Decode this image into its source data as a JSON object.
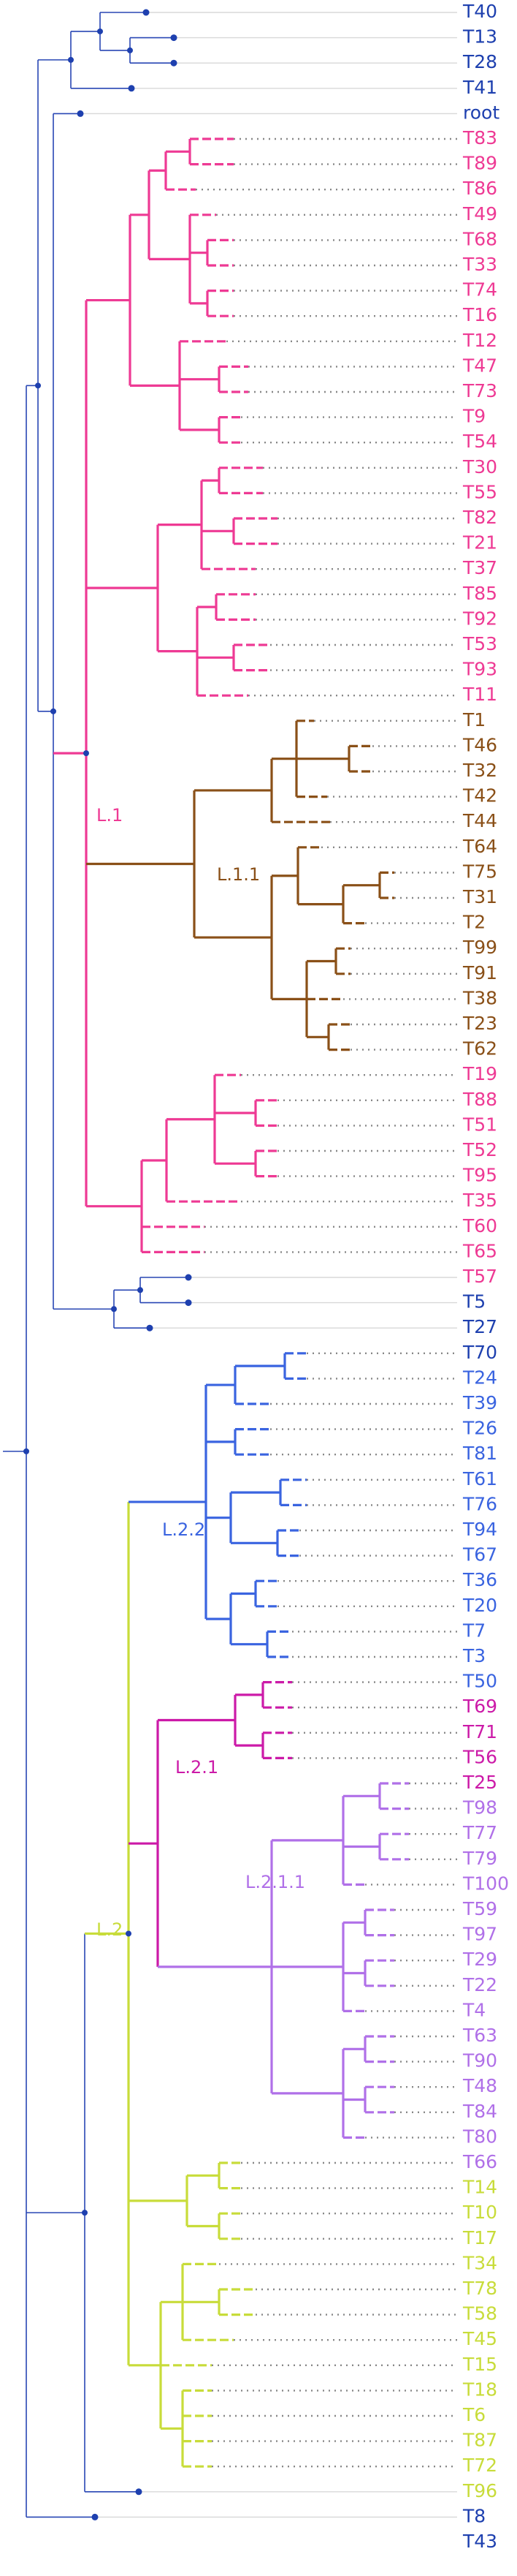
{
  "colors": {
    "base": "#2846b4",
    "node": "#1e40af",
    "guide": "#d8d8d8",
    "L.1": "#ee3a94",
    "L.1.1": "#8a5018",
    "L.2": "#c8dc3a",
    "L.2.1": "#cc1aa8",
    "L.2.1.1": "#b070e8",
    "L.2.2": "#3a64e0"
  },
  "clade_labels": [
    {
      "text": "L.1",
      "clade": "L.1"
    },
    {
      "text": "L.1.1",
      "clade": "L.1.1"
    },
    {
      "text": "L.2",
      "clade": "L.2"
    },
    {
      "text": "L.2.1",
      "clade": "L.2.1"
    },
    {
      "text": "L.2.1.1",
      "clade": "L.2.1.1"
    },
    {
      "text": "L.2.2",
      "clade": "L.2.2"
    }
  ],
  "tips": [
    {
      "label": "T40",
      "clade": "base"
    },
    {
      "label": "T13",
      "clade": "base"
    },
    {
      "label": "T28",
      "clade": "base"
    },
    {
      "label": "T41",
      "clade": "base"
    },
    {
      "label": "root",
      "clade": "base"
    },
    {
      "label": "T83",
      "clade": "L.1"
    },
    {
      "label": "T89",
      "clade": "L.1"
    },
    {
      "label": "T86",
      "clade": "L.1"
    },
    {
      "label": "T49",
      "clade": "L.1"
    },
    {
      "label": "T68",
      "clade": "L.1"
    },
    {
      "label": "T33",
      "clade": "L.1"
    },
    {
      "label": "T74",
      "clade": "L.1"
    },
    {
      "label": "T16",
      "clade": "L.1"
    },
    {
      "label": "T12",
      "clade": "L.1"
    },
    {
      "label": "T47",
      "clade": "L.1"
    },
    {
      "label": "T73",
      "clade": "L.1"
    },
    {
      "label": "T9",
      "clade": "L.1"
    },
    {
      "label": "T54",
      "clade": "L.1"
    },
    {
      "label": "T30",
      "clade": "L.1"
    },
    {
      "label": "T55",
      "clade": "L.1"
    },
    {
      "label": "T82",
      "clade": "L.1"
    },
    {
      "label": "T21",
      "clade": "L.1"
    },
    {
      "label": "T37",
      "clade": "L.1"
    },
    {
      "label": "T85",
      "clade": "L.1"
    },
    {
      "label": "T92",
      "clade": "L.1"
    },
    {
      "label": "T53",
      "clade": "L.1"
    },
    {
      "label": "T93",
      "clade": "L.1"
    },
    {
      "label": "T11",
      "clade": "L.1"
    },
    {
      "label": "T1",
      "clade": "L.1.1"
    },
    {
      "label": "T46",
      "clade": "L.1.1"
    },
    {
      "label": "T32",
      "clade": "L.1.1"
    },
    {
      "label": "T42",
      "clade": "L.1.1"
    },
    {
      "label": "T44",
      "clade": "L.1.1"
    },
    {
      "label": "T64",
      "clade": "L.1.1"
    },
    {
      "label": "T75",
      "clade": "L.1.1"
    },
    {
      "label": "T31",
      "clade": "L.1.1"
    },
    {
      "label": "T2",
      "clade": "L.1.1"
    },
    {
      "label": "T99",
      "clade": "L.1.1"
    },
    {
      "label": "T91",
      "clade": "L.1.1"
    },
    {
      "label": "T38",
      "clade": "L.1.1"
    },
    {
      "label": "T23",
      "clade": "L.1.1"
    },
    {
      "label": "T62",
      "clade": "L.1.1"
    },
    {
      "label": "T19",
      "clade": "L.1"
    },
    {
      "label": "T88",
      "clade": "L.1"
    },
    {
      "label": "T51",
      "clade": "L.1"
    },
    {
      "label": "T52",
      "clade": "L.1"
    },
    {
      "label": "T95",
      "clade": "L.1"
    },
    {
      "label": "T35",
      "clade": "L.1"
    },
    {
      "label": "T60",
      "clade": "L.1"
    },
    {
      "label": "T65",
      "clade": "L.1"
    },
    {
      "label": "T57",
      "clade": "L.1"
    },
    {
      "label": "T5",
      "clade": "base"
    },
    {
      "label": "T27",
      "clade": "base"
    },
    {
      "label": "T70",
      "clade": "base"
    },
    {
      "label": "T24",
      "clade": "L.2.2"
    },
    {
      "label": "T39",
      "clade": "L.2.2"
    },
    {
      "label": "T26",
      "clade": "L.2.2"
    },
    {
      "label": "T81",
      "clade": "L.2.2"
    },
    {
      "label": "T61",
      "clade": "L.2.2"
    },
    {
      "label": "T76",
      "clade": "L.2.2"
    },
    {
      "label": "T94",
      "clade": "L.2.2"
    },
    {
      "label": "T67",
      "clade": "L.2.2"
    },
    {
      "label": "T36",
      "clade": "L.2.2"
    },
    {
      "label": "T20",
      "clade": "L.2.2"
    },
    {
      "label": "T7",
      "clade": "L.2.2"
    },
    {
      "label": "T3",
      "clade": "L.2.2"
    },
    {
      "label": "T50",
      "clade": "L.2.2"
    },
    {
      "label": "T69",
      "clade": "L.2.1"
    },
    {
      "label": "T71",
      "clade": "L.2.1"
    },
    {
      "label": "T56",
      "clade": "L.2.1"
    },
    {
      "label": "T25",
      "clade": "L.2.1"
    },
    {
      "label": "T98",
      "clade": "L.2.1.1"
    },
    {
      "label": "T77",
      "clade": "L.2.1.1"
    },
    {
      "label": "T79",
      "clade": "L.2.1.1"
    },
    {
      "label": "T100",
      "clade": "L.2.1.1"
    },
    {
      "label": "T59",
      "clade": "L.2.1.1"
    },
    {
      "label": "T97",
      "clade": "L.2.1.1"
    },
    {
      "label": "T29",
      "clade": "L.2.1.1"
    },
    {
      "label": "T22",
      "clade": "L.2.1.1"
    },
    {
      "label": "T4",
      "clade": "L.2.1.1"
    },
    {
      "label": "T63",
      "clade": "L.2.1.1"
    },
    {
      "label": "T90",
      "clade": "L.2.1.1"
    },
    {
      "label": "T48",
      "clade": "L.2.1.1"
    },
    {
      "label": "T84",
      "clade": "L.2.1.1"
    },
    {
      "label": "T80",
      "clade": "L.2.1.1"
    },
    {
      "label": "T66",
      "clade": "L.2.1.1"
    },
    {
      "label": "T14",
      "clade": "L.2"
    },
    {
      "label": "T10",
      "clade": "L.2"
    },
    {
      "label": "T17",
      "clade": "L.2"
    },
    {
      "label": "T34",
      "clade": "L.2"
    },
    {
      "label": "T78",
      "clade": "L.2"
    },
    {
      "label": "T58",
      "clade": "L.2"
    },
    {
      "label": "T45",
      "clade": "L.2"
    },
    {
      "label": "T15",
      "clade": "L.2"
    },
    {
      "label": "T18",
      "clade": "L.2"
    },
    {
      "label": "T6",
      "clade": "L.2"
    },
    {
      "label": "T87",
      "clade": "L.2"
    },
    {
      "label": "T72",
      "clade": "L.2"
    },
    {
      "label": "T96",
      "clade": "L.2"
    },
    {
      "label": "T8",
      "clade": "base"
    },
    {
      "label": "T43",
      "clade": "base"
    }
  ]
}
